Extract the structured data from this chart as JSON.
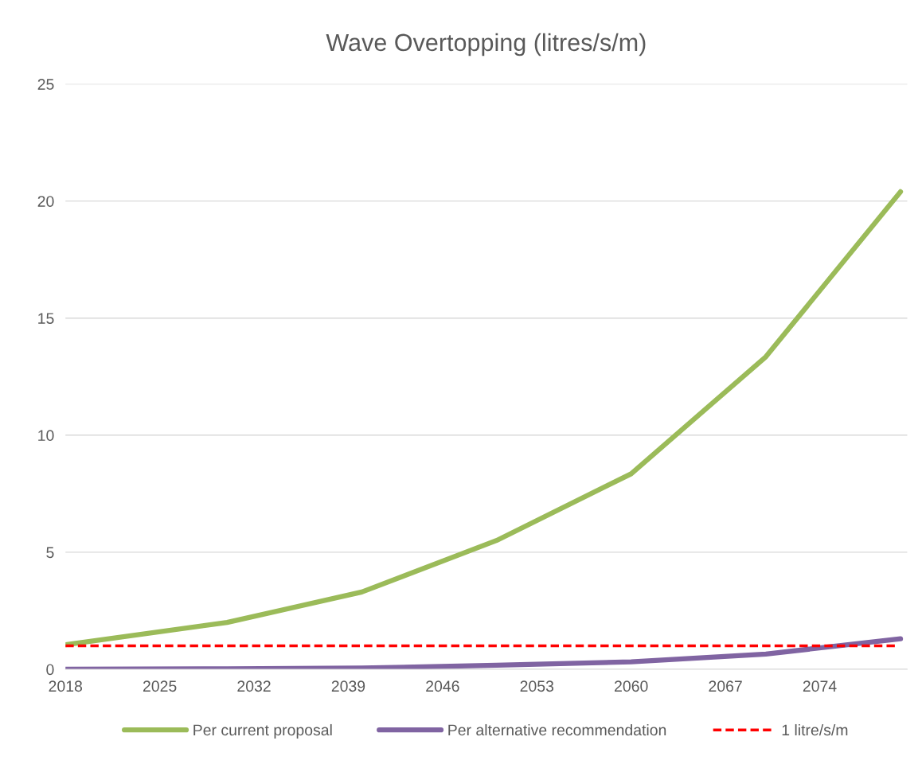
{
  "chart_data": {
    "type": "line",
    "title": "Wave Overtopping (litres/s/m)",
    "x": [
      2018,
      2030,
      2040,
      2050,
      2060,
      2070,
      2080
    ],
    "series": [
      {
        "name": "Per current proposal",
        "color": "#9bbb59",
        "values": [
          1.05,
          2.0,
          3.3,
          5.5,
          8.35,
          13.35,
          20.4
        ]
      },
      {
        "name": "Per alternative recommendation",
        "color": "#8064a2",
        "values": [
          0.0,
          0.02,
          0.05,
          0.17,
          0.32,
          0.65,
          1.3
        ]
      }
    ],
    "ref_lines": [
      {
        "axis": "y",
        "value": 1,
        "label": "1 litre/s/m",
        "color": "#ff0000",
        "line_style": "dashed"
      }
    ],
    "xlim": [
      2018,
      2080.5
    ],
    "xticks": [
      2018,
      2025,
      2032,
      2039,
      2046,
      2053,
      2060,
      2067,
      2074
    ],
    "ylim": [
      0,
      25
    ],
    "yticks": [
      0,
      5,
      10,
      15,
      20,
      25
    ],
    "grid": "y",
    "legend": "bottom",
    "marker": "none",
    "line_style": "solid"
  }
}
